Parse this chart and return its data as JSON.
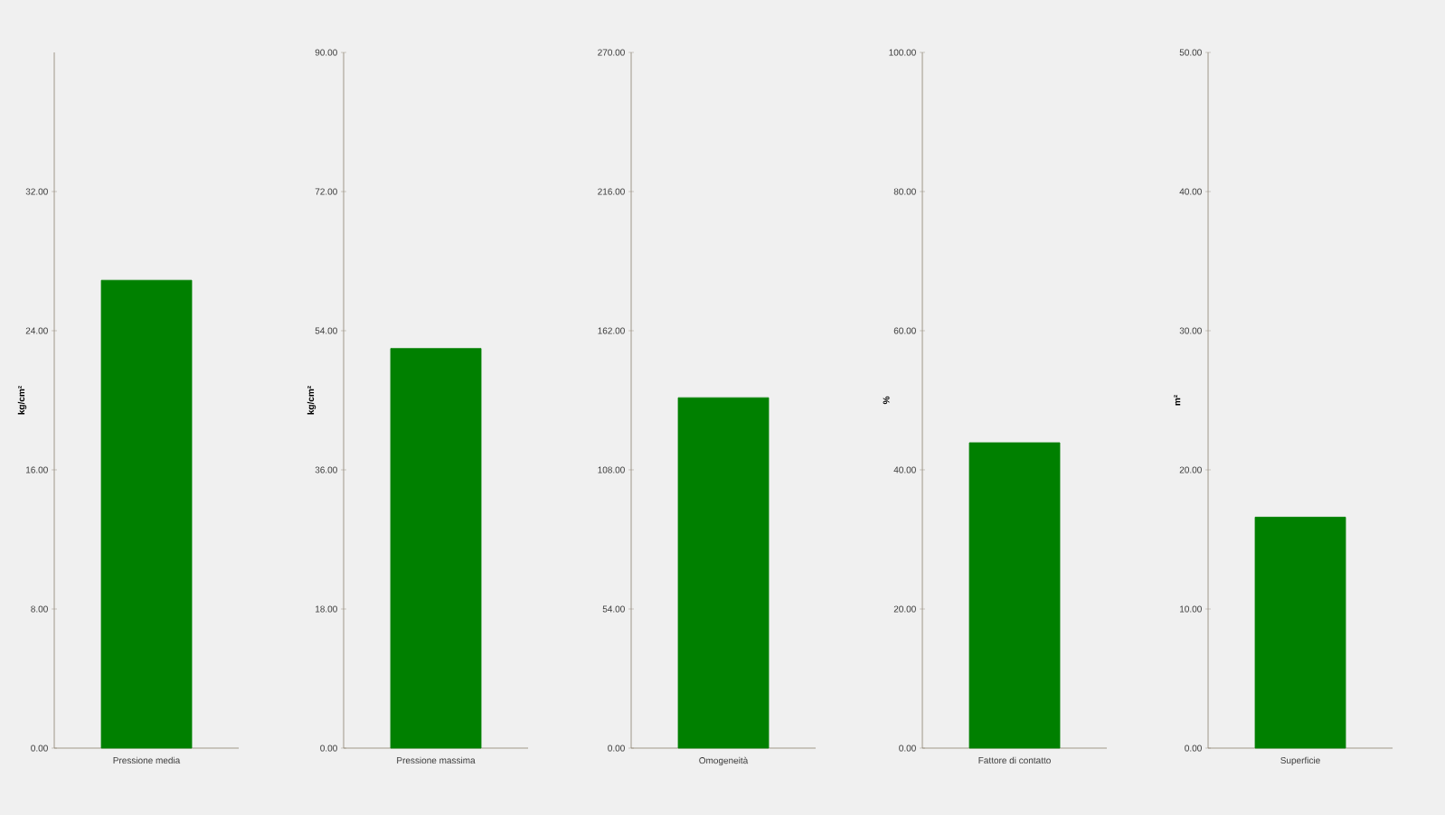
{
  "chart_data": [
    {
      "type": "bar",
      "categories": [
        "Pressione media"
      ],
      "values": [
        26.9
      ],
      "color": "#008000",
      "ylabel": "kg/cm²",
      "ylim": [
        0,
        40
      ],
      "yticks": [
        {
          "value": 0,
          "label": "0.00"
        },
        {
          "value": 8,
          "label": "8.00"
        },
        {
          "value": 16,
          "label": "16.00"
        },
        {
          "value": 24,
          "label": "24.00"
        },
        {
          "value": 32,
          "label": "32.00"
        }
      ],
      "grid": false
    },
    {
      "type": "bar",
      "categories": [
        "Pressione massima"
      ],
      "values": [
        51.7
      ],
      "color": "#008000",
      "ylabel": "kg/cm²",
      "ylim": [
        0,
        90
      ],
      "yticks": [
        {
          "value": 0,
          "label": "0.00"
        },
        {
          "value": 18,
          "label": "18.00"
        },
        {
          "value": 36,
          "label": "36.00"
        },
        {
          "value": 54,
          "label": "54.00"
        },
        {
          "value": 72,
          "label": "72.00"
        },
        {
          "value": 90,
          "label": "90.00"
        }
      ],
      "grid": false
    },
    {
      "type": "bar",
      "categories": [
        "Omogeneità"
      ],
      "values": [
        136
      ],
      "color": "#008000",
      "ylim": [
        0,
        270
      ],
      "yticks": [
        {
          "value": 0,
          "label": "0.00"
        },
        {
          "value": 54,
          "label": "54.00"
        },
        {
          "value": 108,
          "label": "108.00"
        },
        {
          "value": 162,
          "label": "162.00"
        },
        {
          "value": 216,
          "label": "216.00"
        },
        {
          "value": 270,
          "label": "270.00"
        }
      ],
      "grid": false
    },
    {
      "type": "bar",
      "categories": [
        "Fattore di contatto"
      ],
      "values": [
        43.9
      ],
      "color": "#008000",
      "ylabel": "%",
      "ylim": [
        0,
        100
      ],
      "yticks": [
        {
          "value": 0,
          "label": "0.00"
        },
        {
          "value": 20,
          "label": "20.00"
        },
        {
          "value": 40,
          "label": "40.00"
        },
        {
          "value": 60,
          "label": "60.00"
        },
        {
          "value": 80,
          "label": "80.00"
        },
        {
          "value": 100,
          "label": "100.00"
        }
      ],
      "grid": false
    },
    {
      "type": "bar",
      "categories": [
        "Superficie"
      ],
      "values": [
        16.6
      ],
      "color": "#008000",
      "ylabel": "m²",
      "ylim": [
        0,
        50
      ],
      "yticks": [
        {
          "value": 0,
          "label": "0.00"
        },
        {
          "value": 10,
          "label": "10.00"
        },
        {
          "value": 20,
          "label": "20.00"
        },
        {
          "value": 30,
          "label": "30.00"
        },
        {
          "value": 40,
          "label": "40.00"
        },
        {
          "value": 50,
          "label": "50.00"
        }
      ],
      "grid": false
    }
  ]
}
